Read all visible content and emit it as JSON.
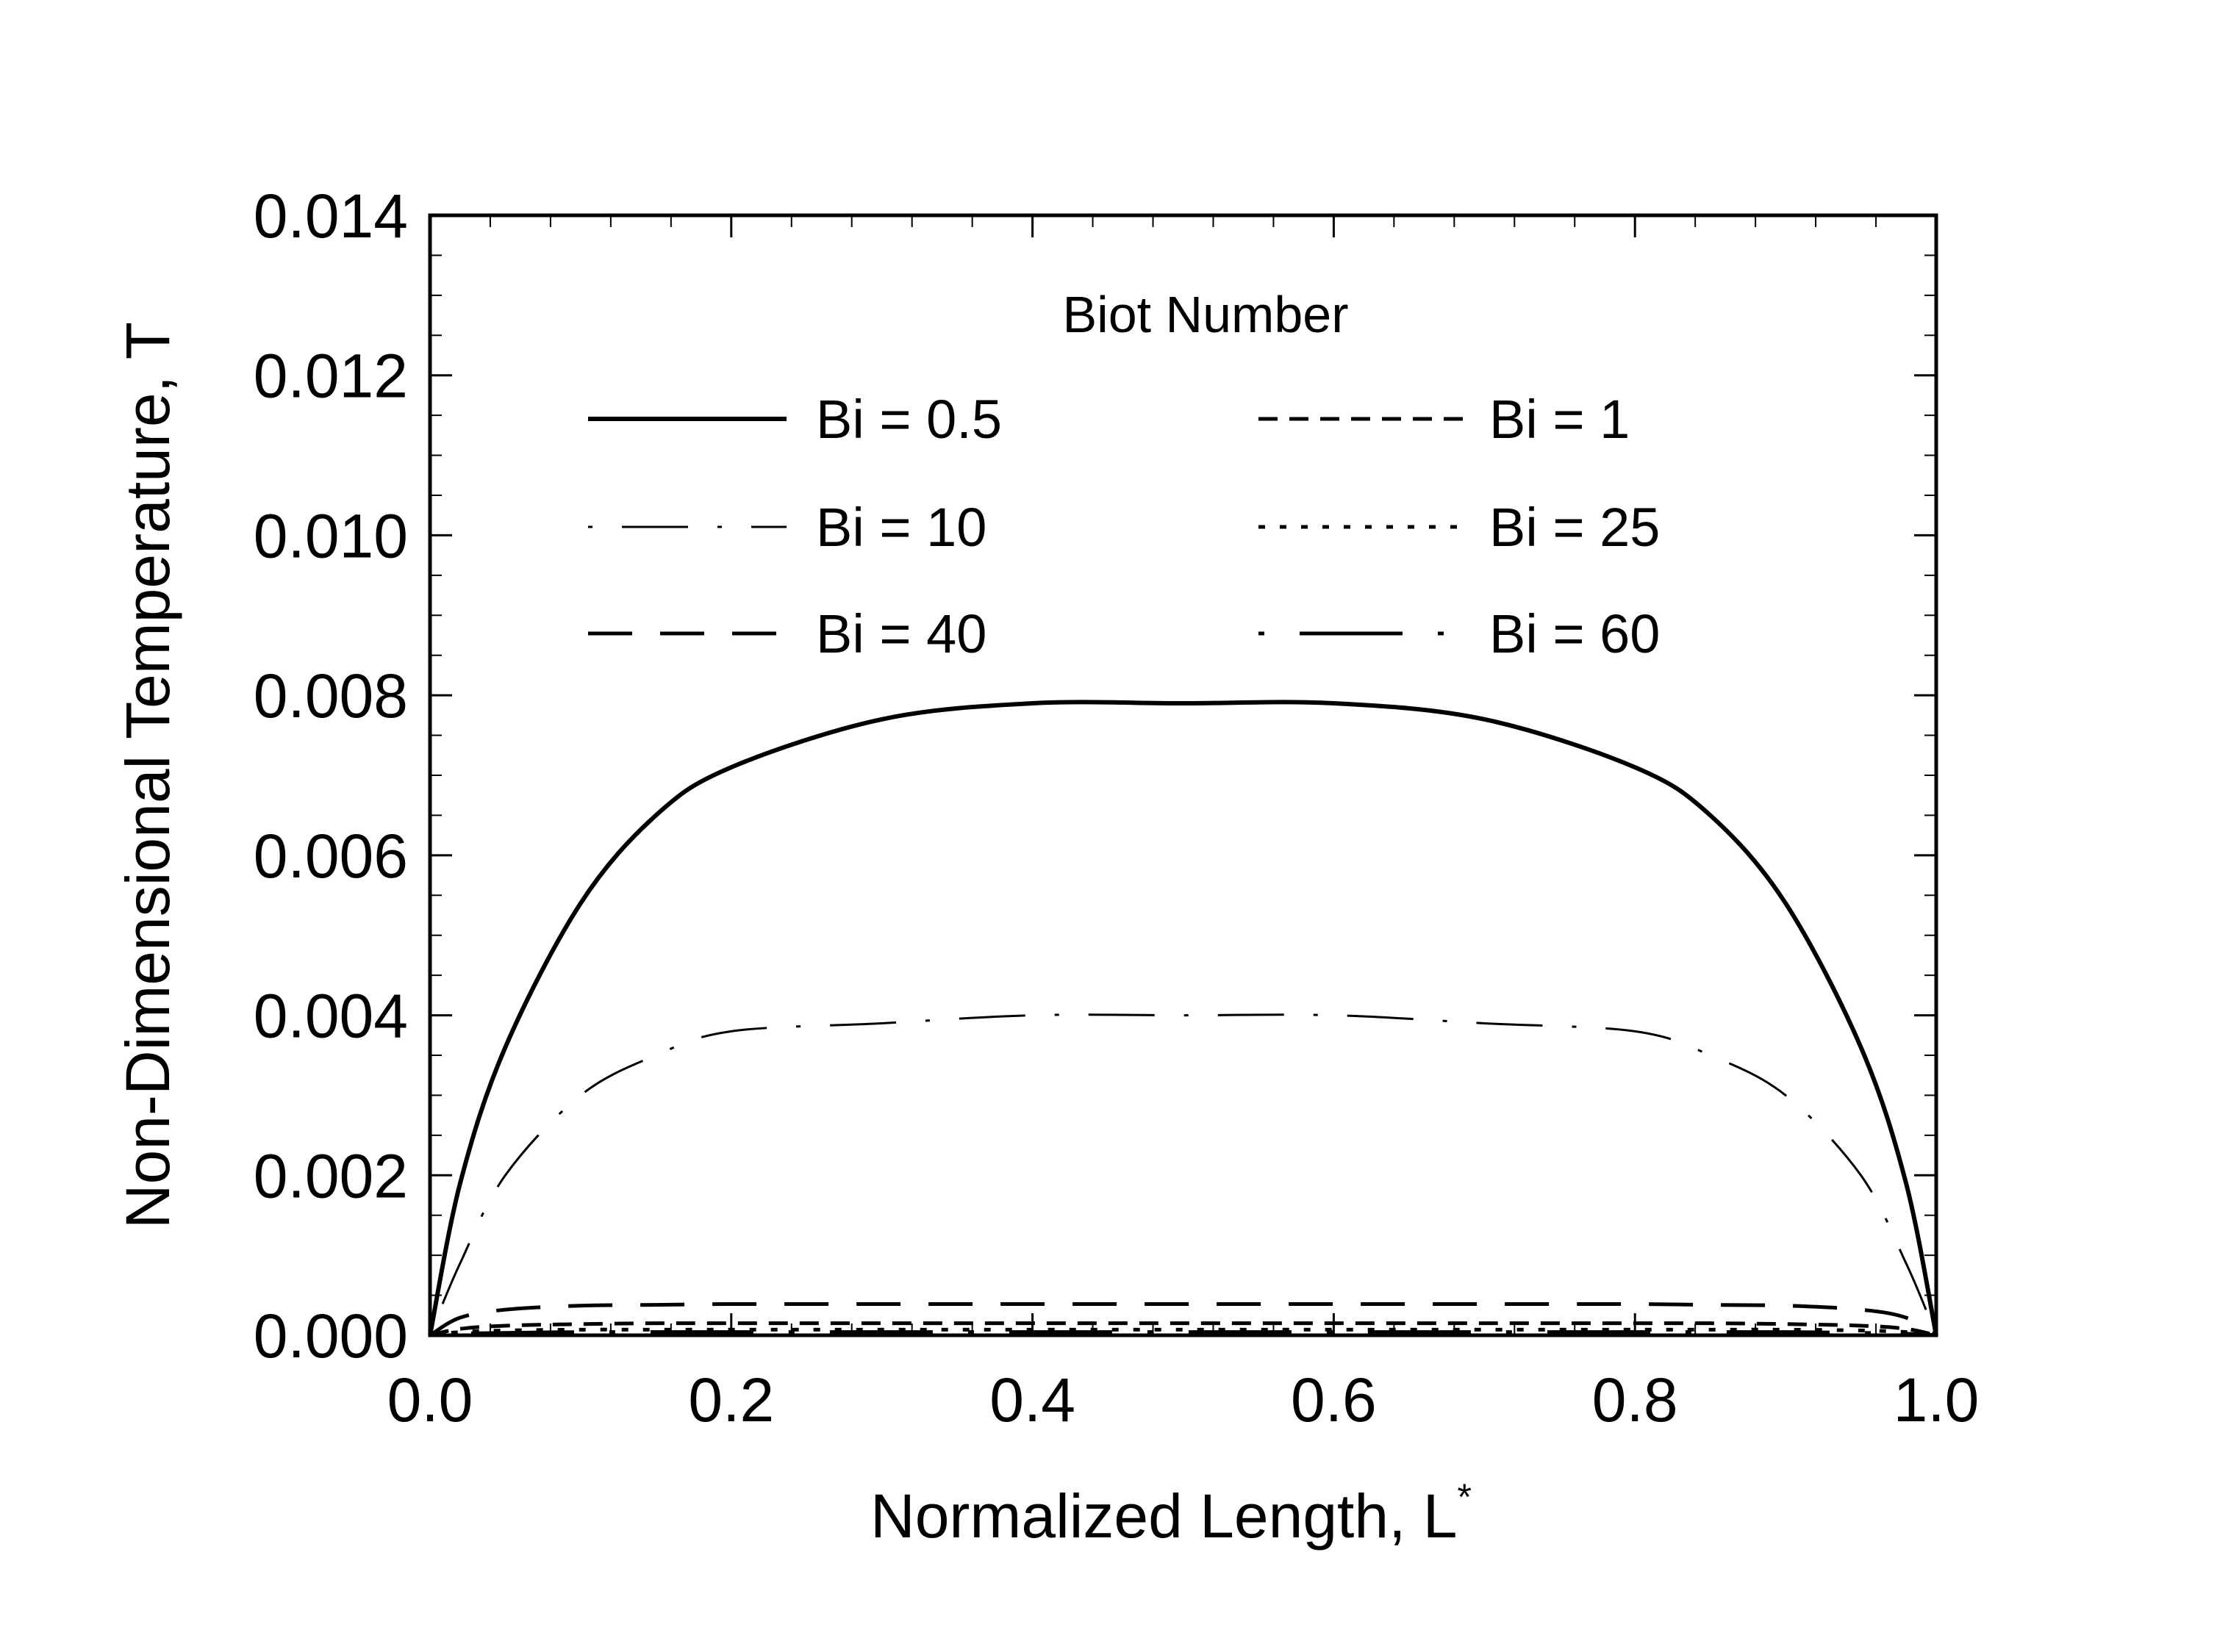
{
  "chart_data": {
    "type": "line",
    "xlabel": "Normalized Length, L",
    "xlabel_superscript": "*",
    "ylabel": "Non-Dimensional Temperature, T",
    "xlim": [
      0.0,
      1.0
    ],
    "ylim": [
      0.0,
      0.014
    ],
    "x_ticks": [
      "0.0",
      "0.2",
      "0.4",
      "0.6",
      "0.8",
      "1.0"
    ],
    "y_ticks": [
      "0.000",
      "0.002",
      "0.004",
      "0.006",
      "0.008",
      "0.010",
      "0.012",
      "0.014"
    ],
    "grid": false,
    "legend": {
      "title": "Biot Number",
      "placement": "top-center, inside plot, two columns"
    },
    "x": [
      0.0,
      0.02,
      0.05,
      0.1,
      0.15,
      0.2,
      0.3,
      0.4,
      0.5,
      0.6,
      0.7,
      0.8,
      0.85,
      0.9,
      0.95,
      0.98,
      1.0
    ],
    "series": [
      {
        "name": "Bi = 0.5",
        "style": "solid-thick",
        "values": [
          0.0,
          0.0019,
          0.0036,
          0.0054,
          0.0065,
          0.0071,
          0.0077,
          0.0079,
          0.0079,
          0.0079,
          0.0077,
          0.0071,
          0.0065,
          0.0054,
          0.0036,
          0.0019,
          0.0
        ]
      },
      {
        "name": "Bi = 1",
        "style": "short-dash",
        "values": [
          0.0,
          8e-05,
          0.00012,
          0.00014,
          0.00015,
          0.00015,
          0.00015,
          0.00015,
          0.00015,
          0.00015,
          0.00015,
          0.00015,
          0.00015,
          0.00014,
          0.00012,
          8e-05,
          0.0
        ]
      },
      {
        "name": "Bi = 10",
        "style": "dash-dot-thin",
        "values": [
          0.0,
          0.0009,
          0.002,
          0.003,
          0.0035,
          0.0038,
          0.0039,
          0.004,
          0.004,
          0.004,
          0.0039,
          0.0038,
          0.0035,
          0.003,
          0.002,
          0.0009,
          0.0
        ]
      },
      {
        "name": "Bi = 25",
        "style": "dotted",
        "values": [
          0.0,
          4e-05,
          6e-05,
          7e-05,
          7e-05,
          7e-05,
          7e-05,
          7e-05,
          7e-05,
          7e-05,
          7e-05,
          7e-05,
          7e-05,
          7e-05,
          6e-05,
          4e-05,
          0.0
        ]
      },
      {
        "name": "Bi = 40",
        "style": "long-dash",
        "values": [
          0.0,
          0.00022,
          0.00032,
          0.00037,
          0.00038,
          0.00039,
          0.00039,
          0.00039,
          0.00039,
          0.00039,
          0.00039,
          0.00039,
          0.00038,
          0.00037,
          0.00032,
          0.00022,
          0.0
        ]
      },
      {
        "name": "Bi = 60",
        "style": "dash-dot-long",
        "values": [
          0.0,
          2e-05,
          3e-05,
          4e-05,
          4e-05,
          4e-05,
          4e-05,
          4e-05,
          4e-05,
          4e-05,
          4e-05,
          4e-05,
          4e-05,
          4e-05,
          3e-05,
          2e-05,
          0.0
        ]
      }
    ]
  }
}
